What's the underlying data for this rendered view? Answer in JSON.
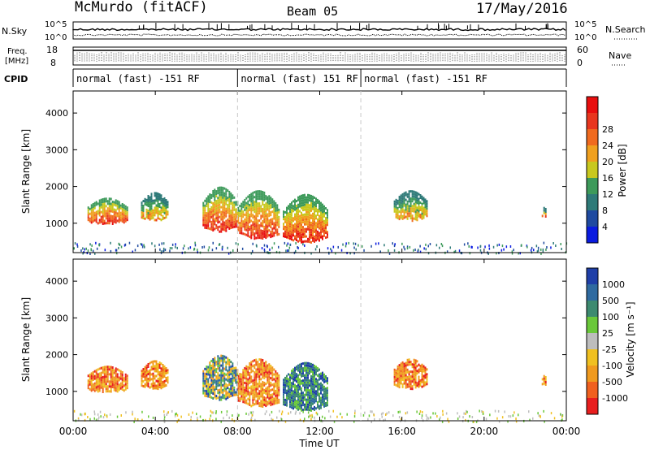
{
  "header": {
    "station": "McMurdo (fitACF)",
    "beam": "Beam 05",
    "date": "17/May/2016"
  },
  "top": {
    "nsky_label": "N.Sky",
    "nsky_ticks": [
      "10^5",
      "10^0"
    ],
    "nsearch_label": "N.Search",
    "nsearch_ticks": [
      "10^5",
      "10^0"
    ],
    "freq_label_1": "Freq.",
    "freq_label_2": "[MHz]",
    "freq_ticks": [
      "18",
      "8"
    ],
    "nave_label": "Nave",
    "nave_ticks": [
      "60",
      "0"
    ],
    "cpid_label": "CPID",
    "cpid_segments": [
      {
        "label": "normal (fast) -151 RF",
        "start_hour": 0,
        "end_hour": 8
      },
      {
        "label": "normal (fast) 151 RF",
        "start_hour": 8,
        "end_hour": 14
      },
      {
        "label": "normal (fast) -151 RF",
        "start_hour": 14,
        "end_hour": 24
      }
    ]
  },
  "chart_data": [
    {
      "type": "heatmap",
      "xlabel": "",
      "ylabel": "Slant Range [km]",
      "ylim": [
        200,
        4600
      ],
      "y_ticks": [
        1000,
        2000,
        3000,
        4000
      ],
      "xlim_hours": [
        0,
        24
      ],
      "colorbar": {
        "label": "Power [dB]",
        "ticks": [
          "4",
          "8",
          "12",
          "16",
          "20",
          "24",
          "28"
        ],
        "colors": [
          "#0a1be0",
          "#1f4aa0",
          "#2e7a78",
          "#3d9a5a",
          "#c8c81e",
          "#f0a01e",
          "#f06a1e",
          "#e8361e",
          "#e80e0e"
        ]
      },
      "echo_regions": [
        {
          "t_start": 0.7,
          "t_end": 2.6,
          "r_min": 1000,
          "r_max": 1700,
          "level": "high"
        },
        {
          "t_start": 3.3,
          "t_end": 4.6,
          "r_min": 1100,
          "r_max": 1850,
          "level": "medium"
        },
        {
          "t_start": 6.3,
          "t_end": 8.0,
          "r_min": 800,
          "r_max": 2000,
          "level": "high"
        },
        {
          "t_start": 8.0,
          "t_end": 10.0,
          "r_min": 600,
          "r_max": 1900,
          "level": "high"
        },
        {
          "t_start": 10.2,
          "t_end": 12.4,
          "r_min": 500,
          "r_max": 1800,
          "level": "high"
        },
        {
          "t_start": 15.6,
          "t_end": 17.2,
          "r_min": 1100,
          "r_max": 1900,
          "level": "medium"
        },
        {
          "t_start": 22.8,
          "t_end": 23.0,
          "r_min": 1200,
          "r_max": 1450,
          "level": "medium"
        }
      ]
    },
    {
      "type": "heatmap",
      "xlabel": "Time UT",
      "ylabel": "Slant Range [km]",
      "ylim": [
        200,
        4600
      ],
      "y_ticks": [
        1000,
        2000,
        3000,
        4000
      ],
      "xlim_hours": [
        0,
        24
      ],
      "x_ticks": [
        "00:00",
        "04:00",
        "08:00",
        "12:00",
        "16:00",
        "20:00",
        "00:00"
      ],
      "colorbar": {
        "label": "Velocity [m s⁻¹]",
        "ticks": [
          "1000",
          "500",
          "100",
          "25",
          "-25",
          "-100",
          "-500",
          "-1000"
        ],
        "colors": [
          "#1f3fa8",
          "#2f6aa0",
          "#3d8a70",
          "#6ac83a",
          "#bdbdbd",
          "#f0c020",
          "#f09a1e",
          "#f0601e",
          "#e81e1e"
        ]
      },
      "echo_regions": [
        {
          "t_start": 0.7,
          "t_end": 2.6,
          "r_min": 1000,
          "r_max": 1700,
          "level": "negative"
        },
        {
          "t_start": 3.3,
          "t_end": 4.6,
          "r_min": 1100,
          "r_max": 1850,
          "level": "negative"
        },
        {
          "t_start": 6.3,
          "t_end": 8.0,
          "r_min": 800,
          "r_max": 2000,
          "level": "mixed"
        },
        {
          "t_start": 8.0,
          "t_end": 10.0,
          "r_min": 600,
          "r_max": 1900,
          "level": "negative"
        },
        {
          "t_start": 10.2,
          "t_end": 12.4,
          "r_min": 500,
          "r_max": 1800,
          "level": "positive"
        },
        {
          "t_start": 15.6,
          "t_end": 17.2,
          "r_min": 1100,
          "r_max": 1900,
          "level": "negative"
        },
        {
          "t_start": 22.8,
          "t_end": 23.0,
          "r_min": 1200,
          "r_max": 1450,
          "level": "negative"
        }
      ]
    }
  ]
}
